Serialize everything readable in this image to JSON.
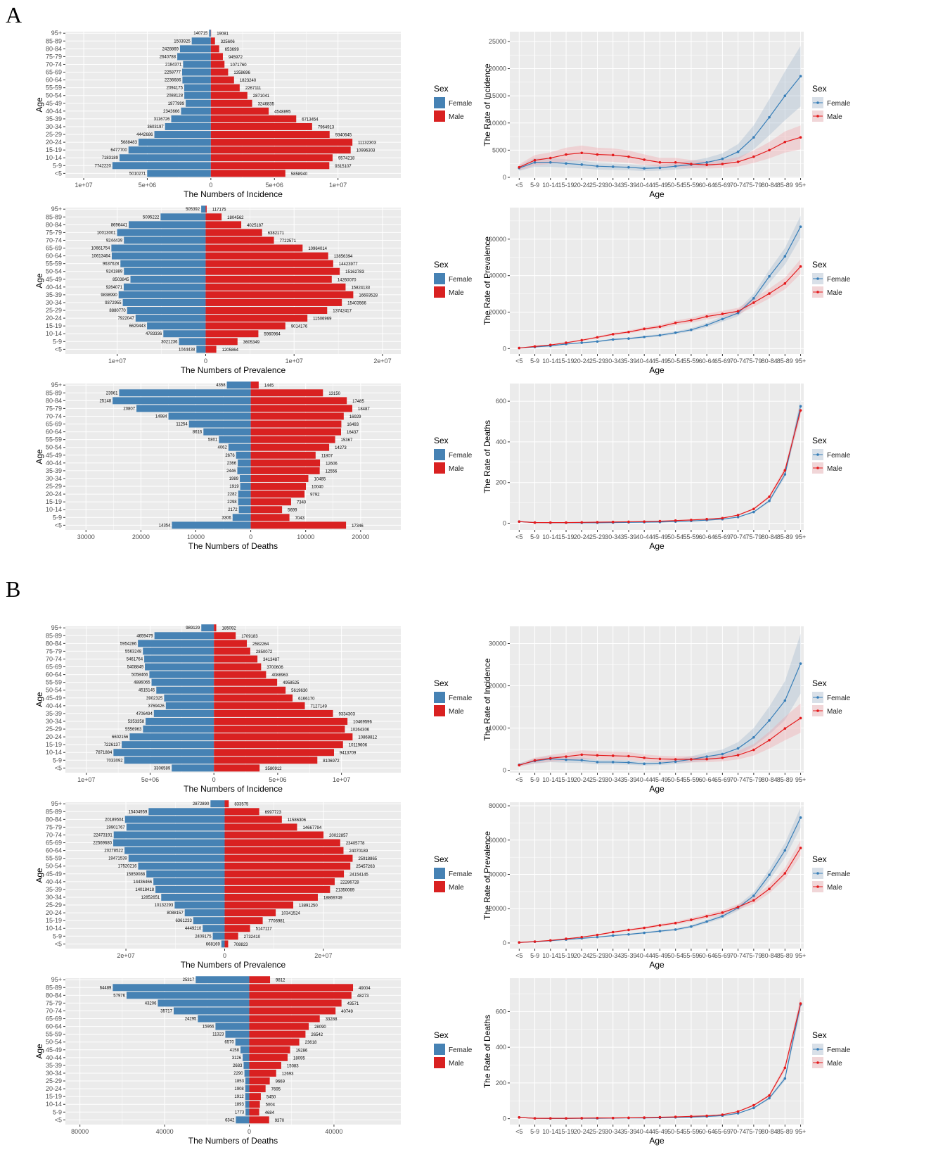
{
  "panel_labels": [
    "A",
    "B"
  ],
  "ages": [
    "<5",
    "5-9",
    "10-14",
    "15-19",
    "20-24",
    "25-29",
    "30-34",
    "35-39",
    "40-44",
    "45-49",
    "50-54",
    "55-59",
    "60-64",
    "65-69",
    "70-74",
    "75-79",
    "80-84",
    "85-89",
    "95+"
  ],
  "legend": {
    "title": "Sex",
    "female": "Female",
    "male": "Male"
  },
  "colors": {
    "female_bar": "#4682B4",
    "male_bar": "#D92121",
    "female_line": "#377EB8",
    "male_line": "#E41A1C",
    "panel_bg": "#EBEBEB"
  },
  "chart_data": [
    {
      "panel": "A",
      "type": "bar",
      "orientation": "pyramid",
      "xlabel": "The Numbers of Incidence",
      "ylabel": "Age",
      "xlim": [
        -11440000,
        14940000
      ],
      "x_ticks": [
        -10000000,
        -5000000,
        0,
        5000000,
        10000000
      ],
      "x_tick_labels": [
        "1e+07",
        "5e+06",
        "0",
        "5e+06",
        "1e+07"
      ],
      "female": [
        5010271,
        7742220,
        7183189,
        6477700,
        5688483,
        4442686,
        3603197,
        3116726,
        2343666,
        1977999,
        2088128,
        2094175,
        2236686,
        2258777,
        2184371,
        2640788,
        2428869,
        1503925,
        140715
      ],
      "male": [
        5858940,
        9315107,
        9574218,
        10996303,
        11132303,
        9340645,
        7964913,
        6713454,
        4548895,
        3246835,
        2871041,
        2267111,
        1823240,
        1358696,
        1071760,
        945972,
        653699,
        325606,
        19081
      ]
    },
    {
      "panel": "A",
      "type": "line",
      "xlabel": "Age",
      "ylabel": "The Rate of Incidence",
      "ylim": [
        -130,
        26800
      ],
      "y_ticks": [
        0,
        5000,
        10000,
        15000,
        20000,
        25000
      ],
      "y_tick_labels": [
        "0",
        "5000",
        "10000",
        "15000",
        "20000",
        "25000"
      ],
      "ribbon_rel": 0.3,
      "female": [
        1700,
        2750,
        2750,
        2550,
        2350,
        2050,
        1950,
        1850,
        1650,
        1750,
        2050,
        2350,
        2750,
        3400,
        4700,
        7350,
        11050,
        15000,
        18600
      ],
      "male": [
        1850,
        3150,
        3550,
        4200,
        4500,
        4200,
        4100,
        3800,
        3250,
        2750,
        2750,
        2450,
        2300,
        2450,
        2850,
        3800,
        5000,
        6500,
        7350
      ]
    },
    {
      "panel": "A",
      "type": "bar",
      "orientation": "pyramid",
      "xlabel": "The Numbers of Prevalence",
      "ylabel": "Age",
      "xlim": [
        -15860000,
        22070000
      ],
      "x_ticks": [
        -10000000,
        0,
        10000000,
        20000000
      ],
      "x_tick_labels": [
        "1e+07",
        "0",
        "1e+07",
        "2e+07"
      ],
      "female": [
        1044438,
        3021236,
        4783336,
        6629443,
        7922047,
        8880770,
        9372955,
        9838990,
        9264071,
        8503845,
        9241889,
        9637628,
        10613464,
        10661754,
        9244439,
        10013001,
        8696441,
        5095222,
        505392
      ],
      "male": [
        1205864,
        3605349,
        5960964,
        9014176,
        11506969,
        13742417,
        15403566,
        16693528,
        15824133,
        14260070,
        15162783,
        14423977,
        13856394,
        10964014,
        7722571,
        6382171,
        4025187,
        1804562,
        117175
      ]
    },
    {
      "panel": "A",
      "type": "line",
      "xlabel": "Age",
      "ylabel": "The Rate of Prevalence",
      "ylim": [
        -2950,
        77300
      ],
      "y_ticks": [
        0,
        20000,
        40000,
        60000
      ],
      "y_tick_labels": [
        "0",
        "20000",
        "40000",
        "60000"
      ],
      "ribbon_rel": 0.09,
      "female": [
        300,
        900,
        1500,
        2500,
        3200,
        3900,
        5000,
        5500,
        6400,
        7300,
        8700,
        10300,
        12900,
        16200,
        19500,
        27600,
        39600,
        50600,
        66800
      ],
      "male": [
        300,
        1200,
        2000,
        3200,
        4600,
        6200,
        7900,
        9100,
        10800,
        12000,
        14100,
        15500,
        17600,
        19000,
        20500,
        25200,
        30200,
        35700,
        45000
      ]
    },
    {
      "panel": "A",
      "type": "bar",
      "orientation": "pyramid",
      "xlabel": "The Numbers of Deaths",
      "ylabel": "Age",
      "xlim": [
        -33745,
        27320
      ],
      "x_ticks": [
        -30000,
        -20000,
        -10000,
        0,
        10000,
        20000
      ],
      "x_tick_labels": [
        "30000",
        "20000",
        "10000",
        "0",
        "10000",
        "20000"
      ],
      "female": [
        14354,
        3306,
        2172,
        2298,
        2282,
        1919,
        1989,
        2446,
        2366,
        2676,
        4062,
        5801,
        8616,
        11254,
        14984,
        20807,
        25148,
        23961,
        4358
      ],
      "male": [
        17346,
        7043,
        5699,
        7340,
        9792,
        10040,
        10485,
        12556,
        12606,
        11807,
        14273,
        15367,
        16437,
        16493,
        16929,
        18487,
        17485,
        13150,
        1445
      ]
    },
    {
      "panel": "A",
      "type": "line",
      "xlabel": "Age",
      "ylabel": "The Rate of Deaths",
      "ylim": [
        -33,
        687
      ],
      "y_ticks": [
        0,
        200,
        400,
        600
      ],
      "y_tick_labels": [
        "0",
        "200",
        "400",
        "600"
      ],
      "ribbon_rel": 0.06,
      "female": [
        8,
        3,
        2,
        2,
        2,
        2,
        3,
        4,
        5,
        6,
        8,
        11,
        15,
        20,
        30,
        55,
        110,
        240,
        575
      ],
      "male": [
        8,
        3,
        3,
        3,
        4,
        5,
        6,
        7,
        8,
        10,
        13,
        16,
        20,
        25,
        40,
        70,
        130,
        260,
        555
      ]
    },
    {
      "panel": "B",
      "type": "bar",
      "orientation": "pyramid",
      "xlabel": "The Numbers of Incidence",
      "ylabel": "Age",
      "xlim": [
        -11640000,
        14650000
      ],
      "x_ticks": [
        -10000000,
        -5000000,
        0,
        5000000,
        10000000
      ],
      "x_tick_labels": [
        "1e+07",
        "5e+06",
        "0",
        "5e+06",
        "1e+07"
      ],
      "female": [
        3306589,
        7033092,
        7871884,
        7226137,
        6602156,
        5556963,
        5353358,
        4706494,
        3769426,
        3902325,
        4515145,
        4886065,
        5058466,
        5408849,
        5461764,
        5563248,
        5954286,
        4659479,
        989129
      ],
      "male": [
        3580912,
        8106972,
        9413709,
        10119606,
        10868812,
        10264306,
        10469596,
        9334303,
        7127149,
        6166170,
        5619630,
        4958525,
        4088963,
        3700606,
        3413487,
        2850072,
        2582264,
        1709183,
        185092
      ]
    },
    {
      "panel": "B",
      "type": "line",
      "xlabel": "Age",
      "ylabel": "The Rate of Incidence",
      "ylim": [
        -560,
        34080
      ],
      "y_ticks": [
        0,
        10000,
        20000,
        30000
      ],
      "y_tick_labels": [
        "0",
        "10000",
        "20000",
        "30000"
      ],
      "ribbon_rel": 0.28,
      "female": [
        1300,
        2200,
        2700,
        2500,
        2400,
        1950,
        1950,
        1850,
        1550,
        1700,
        2050,
        2600,
        3250,
        3850,
        5200,
        7800,
        11800,
        16500,
        25250
      ],
      "male": [
        1200,
        2350,
        2850,
        3250,
        3700,
        3550,
        3450,
        3350,
        2950,
        2700,
        2600,
        2600,
        2650,
        2950,
        3600,
        4850,
        7150,
        9900,
        12350
      ]
    },
    {
      "panel": "B",
      "type": "bar",
      "orientation": "pyramid",
      "xlabel": "The Numbers of Prevalence",
      "ylabel": "Age",
      "xlim": [
        -32260000,
        35680000
      ],
      "x_ticks": [
        -20000000,
        0,
        20000000
      ],
      "x_tick_labels": [
        "2e+07",
        "0",
        "2e+07"
      ],
      "female": [
        668169,
        2409175,
        4449210,
        6361233,
        8088157,
        10132293,
        12852651,
        14018418,
        14436466,
        15859088,
        17520216,
        19471539,
        20278522,
        22569680,
        22473191,
        19901767,
        20189504,
        15404959,
        2872890
      ],
      "male": [
        708823,
        2732410,
        5147117,
        7706981,
        10341524,
        13891250,
        18869749,
        21350069,
        22286728,
        24154145,
        25457263,
        25918865,
        24070189,
        23405778,
        20022857,
        14667794,
        11586306,
        6997723,
        833575
      ]
    },
    {
      "panel": "B",
      "type": "line",
      "xlabel": "Age",
      "ylabel": "The Rate of Prevalence",
      "ylim": [
        -3300,
        82070
      ],
      "y_ticks": [
        0,
        20000,
        40000,
        60000,
        80000
      ],
      "y_tick_labels": [
        "0",
        "20000",
        "40000",
        "60000",
        "80000"
      ],
      "ribbon_rel": 0.08,
      "female": [
        300,
        700,
        1300,
        2000,
        2700,
        3400,
        4300,
        5000,
        5900,
        6900,
        7800,
        9600,
        12500,
        15600,
        20500,
        27500,
        39700,
        54000,
        73100
      ],
      "male": [
        300,
        800,
        1500,
        2400,
        3400,
        4700,
        6300,
        7600,
        8800,
        10300,
        11600,
        13500,
        15600,
        17700,
        21000,
        24800,
        31500,
        40600,
        55400
      ]
    },
    {
      "panel": "B",
      "type": "bar",
      "orientation": "pyramid",
      "xlabel": "The Numbers of Deaths",
      "ylabel": "Age",
      "xlim": [
        -86870,
        71580
      ],
      "x_ticks": [
        -80000,
        -40000,
        0,
        40000
      ],
      "x_tick_labels": [
        "80000",
        "40000",
        "0",
        "40000"
      ],
      "female": [
        6342,
        1773,
        1893,
        1912,
        1908,
        1853,
        2290,
        2683,
        3126,
        4158,
        6570,
        11323,
        15966,
        24295,
        35717,
        43206,
        57976,
        64489,
        25317
      ],
      "male": [
        9370,
        4684,
        5004,
        5450,
        7695,
        9669,
        12693,
        15083,
        18095,
        19286,
        23618,
        26542,
        28090,
        33288,
        40749,
        43571,
        48273,
        49004,
        9812
      ]
    },
    {
      "panel": "B",
      "type": "line",
      "xlabel": "Age",
      "ylabel": "The Rate of Deaths",
      "ylim": [
        -33,
        787
      ],
      "y_ticks": [
        0,
        200,
        400,
        600
      ],
      "y_tick_labels": [
        "0",
        "200",
        "400",
        "600"
      ],
      "ribbon_rel": 0.06,
      "female": [
        7,
        2,
        1,
        1,
        2,
        2,
        3,
        4,
        4,
        5,
        7,
        9,
        12,
        17,
        30,
        60,
        115,
        225,
        640
      ],
      "male": [
        7,
        2,
        2,
        2,
        3,
        4,
        4,
        5,
        6,
        8,
        10,
        13,
        16,
        22,
        40,
        75,
        130,
        285,
        645
      ]
    }
  ]
}
